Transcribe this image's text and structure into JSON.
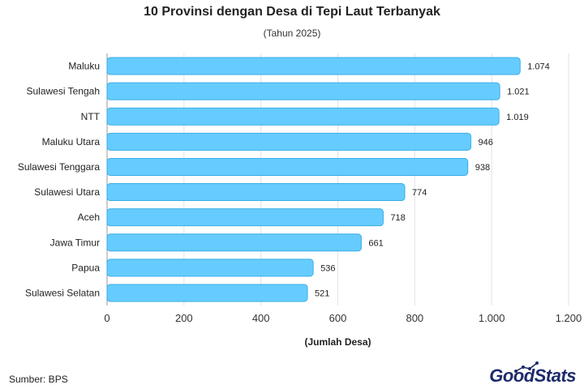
{
  "chart_data": {
    "type": "bar",
    "orientation": "horizontal",
    "title": "10 Provinsi dengan Desa di Tepi Laut Terbanyak",
    "subtitle": "(Tahun 2025)",
    "xlabel": "(Jumlah Desa)",
    "ylabel": "",
    "categories": [
      "Maluku",
      "Sulawesi Tengah",
      "NTT",
      "Maluku Utara",
      "Sulawesi Tenggara",
      "Sulawesi Utara",
      "Aceh",
      "Jawa Timur",
      "Papua",
      "Sulawesi Selatan"
    ],
    "values": [
      1074,
      1021,
      1019,
      946,
      938,
      774,
      718,
      661,
      536,
      521
    ],
    "value_labels": [
      "1.074",
      "1.021",
      "1.019",
      "946",
      "938",
      "774",
      "718",
      "661",
      "536",
      "521"
    ],
    "xlim": [
      0,
      1200
    ],
    "xticks": [
      0,
      200,
      400,
      600,
      800,
      1000,
      1200
    ],
    "xtick_labels": [
      "0",
      "200",
      "400",
      "600",
      "800",
      "1.000",
      "1.200"
    ],
    "grid": "vertical",
    "bar_fill": "#66ccff",
    "bar_stroke": "#3aaee6"
  },
  "footer": {
    "source": "Sumber: BPS",
    "logo_good": "Good",
    "logo_stats": "Stats"
  }
}
